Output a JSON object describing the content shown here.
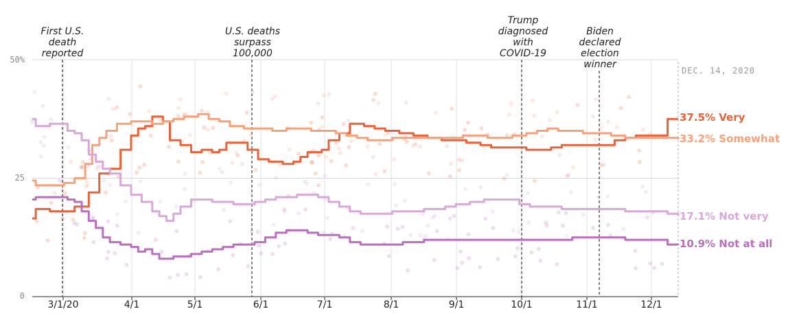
{
  "chart_data": {
    "type": "line",
    "y_ticks": [
      "50%",
      "25",
      "0"
    ],
    "ylim": [
      0,
      50
    ],
    "x_ticks": [
      "3/1/20",
      "4/1",
      "5/1",
      "6/1",
      "7/1",
      "8/1",
      "9/1",
      "10/1",
      "11/1",
      "12/1"
    ],
    "date_label": "DEC. 14, 2020",
    "annotations": [
      {
        "text": "First U.S. death reported",
        "lines": [
          "First U.S.",
          "death",
          "reported"
        ]
      },
      {
        "text": "U.S. deaths surpass 100,000",
        "lines": [
          "U.S. deaths",
          "surpass",
          "100,000"
        ]
      },
      {
        "text": "Trump diagnosed with COVID-19",
        "lines": [
          "Trump",
          "diagnosed",
          "with",
          "COVID-19"
        ]
      },
      {
        "text": "Biden declared election winner",
        "lines": [
          "Biden",
          "declared",
          "election",
          "winner"
        ]
      }
    ],
    "series": [
      {
        "name": "Very",
        "label": "37.5% Very",
        "color": "#e8623a",
        "values": [
          [
            0,
            16.5
          ],
          [
            0.1,
            18.5
          ],
          [
            0.5,
            18
          ],
          [
            0.9,
            18
          ],
          [
            1.2,
            19
          ],
          [
            1.6,
            22
          ],
          [
            1.9,
            26
          ],
          [
            2.2,
            27
          ],
          [
            2.5,
            31
          ],
          [
            2.8,
            34
          ],
          [
            3.0,
            35.5
          ],
          [
            3.2,
            36
          ],
          [
            3.4,
            38
          ],
          [
            3.7,
            37
          ],
          [
            3.9,
            33
          ],
          [
            4.2,
            32
          ],
          [
            4.5,
            30.5
          ],
          [
            4.8,
            31
          ],
          [
            5.1,
            30.5
          ],
          [
            5.3,
            31
          ],
          [
            5.5,
            32.5
          ],
          [
            5.8,
            32.5
          ],
          [
            6.1,
            31
          ],
          [
            6.4,
            29
          ],
          [
            6.7,
            28.5
          ],
          [
            7.1,
            28
          ],
          [
            7.4,
            28.5
          ],
          [
            7.6,
            29.5
          ],
          [
            7.8,
            30.5
          ],
          [
            8.2,
            31
          ],
          [
            8.4,
            33
          ],
          [
            8.7,
            34.5
          ],
          [
            9.0,
            36.5
          ],
          [
            9.4,
            36
          ],
          [
            9.7,
            35.5
          ],
          [
            10.0,
            35
          ],
          [
            10.4,
            34.5
          ],
          [
            10.8,
            34
          ],
          [
            11.2,
            33.5
          ],
          [
            11.6,
            33
          ],
          [
            12.0,
            33
          ],
          [
            12.3,
            32.5
          ],
          [
            12.7,
            32
          ],
          [
            13.0,
            31.5
          ],
          [
            13.4,
            31.5
          ],
          [
            13.7,
            31.5
          ],
          [
            14.0,
            31
          ],
          [
            14.3,
            31
          ],
          [
            14.7,
            31.5
          ],
          [
            15.0,
            32
          ],
          [
            15.3,
            32
          ],
          [
            15.6,
            32
          ],
          [
            15.9,
            32
          ],
          [
            16.2,
            32
          ],
          [
            16.5,
            33
          ],
          [
            16.8,
            33.5
          ],
          [
            17.1,
            34
          ],
          [
            17.4,
            34
          ],
          [
            17.7,
            34
          ],
          [
            18.0,
            37.5
          ],
          [
            18.3,
            37.5
          ]
        ]
      },
      {
        "name": "Somewhat",
        "label": "33.2% Somewhat",
        "color": "#f7a17a",
        "values": [
          [
            0,
            24.5
          ],
          [
            0.1,
            23.5
          ],
          [
            0.5,
            23.5
          ],
          [
            0.9,
            24
          ],
          [
            1.2,
            25
          ],
          [
            1.5,
            28
          ],
          [
            1.7,
            32
          ],
          [
            1.9,
            33.5
          ],
          [
            2.1,
            35
          ],
          [
            2.4,
            36.5
          ],
          [
            2.8,
            37
          ],
          [
            3.1,
            37
          ],
          [
            3.4,
            36.5
          ],
          [
            3.7,
            37
          ],
          [
            4.0,
            37.5
          ],
          [
            4.3,
            38
          ],
          [
            4.7,
            38.5
          ],
          [
            5.0,
            37.5
          ],
          [
            5.3,
            37
          ],
          [
            5.6,
            36
          ],
          [
            6.0,
            35.5
          ],
          [
            6.4,
            35.5
          ],
          [
            6.8,
            35
          ],
          [
            7.2,
            35.5
          ],
          [
            7.6,
            35.5
          ],
          [
            7.9,
            35
          ],
          [
            8.3,
            35
          ],
          [
            8.6,
            34.5
          ],
          [
            8.9,
            34
          ],
          [
            9.2,
            33.5
          ],
          [
            9.5,
            33
          ],
          [
            9.9,
            33
          ],
          [
            10.2,
            33.5
          ],
          [
            10.6,
            33.5
          ],
          [
            11.0,
            33.5
          ],
          [
            11.4,
            33.5
          ],
          [
            11.8,
            33.5
          ],
          [
            12.2,
            34
          ],
          [
            12.6,
            34
          ],
          [
            12.9,
            33.5
          ],
          [
            13.2,
            33.5
          ],
          [
            13.6,
            34
          ],
          [
            14.0,
            34.5
          ],
          [
            14.3,
            35
          ],
          [
            14.6,
            35.5
          ],
          [
            14.9,
            35
          ],
          [
            15.2,
            35
          ],
          [
            15.6,
            34.5
          ],
          [
            16.0,
            34.5
          ],
          [
            16.4,
            34
          ],
          [
            16.8,
            33.5
          ],
          [
            17.2,
            33.5
          ],
          [
            17.6,
            33.5
          ],
          [
            18.0,
            33.5
          ],
          [
            18.3,
            33.2
          ]
        ]
      },
      {
        "name": "Not very",
        "label": "17.1% Not very",
        "color": "#d8a8d8",
        "values": [
          [
            0,
            37.5
          ],
          [
            0.1,
            36
          ],
          [
            0.5,
            36.5
          ],
          [
            0.8,
            36.5
          ],
          [
            1.0,
            35
          ],
          [
            1.2,
            34.5
          ],
          [
            1.4,
            33
          ],
          [
            1.6,
            30
          ],
          [
            1.8,
            28.5
          ],
          [
            2.0,
            27
          ],
          [
            2.2,
            26
          ],
          [
            2.5,
            23.5
          ],
          [
            2.8,
            21.5
          ],
          [
            3.1,
            20
          ],
          [
            3.4,
            18
          ],
          [
            3.6,
            17
          ],
          [
            3.8,
            16
          ],
          [
            4.0,
            17.5
          ],
          [
            4.2,
            19
          ],
          [
            4.5,
            20.5
          ],
          [
            4.8,
            20.5
          ],
          [
            5.1,
            20
          ],
          [
            5.4,
            20
          ],
          [
            5.7,
            19.5
          ],
          [
            6.0,
            19.5
          ],
          [
            6.3,
            20
          ],
          [
            6.6,
            20.5
          ],
          [
            6.9,
            21
          ],
          [
            7.2,
            21
          ],
          [
            7.5,
            21.5
          ],
          [
            7.8,
            21.5
          ],
          [
            8.1,
            21
          ],
          [
            8.4,
            20
          ],
          [
            8.7,
            19
          ],
          [
            9.0,
            18
          ],
          [
            9.3,
            17.5
          ],
          [
            9.6,
            17.5
          ],
          [
            9.9,
            17.5
          ],
          [
            10.2,
            18
          ],
          [
            10.5,
            18
          ],
          [
            10.8,
            18
          ],
          [
            11.1,
            18.5
          ],
          [
            11.4,
            18.5
          ],
          [
            11.7,
            19
          ],
          [
            12.0,
            19.5
          ],
          [
            12.4,
            20
          ],
          [
            12.8,
            20.5
          ],
          [
            13.2,
            20.5
          ],
          [
            13.5,
            20.5
          ],
          [
            13.8,
            19.5
          ],
          [
            14.1,
            19
          ],
          [
            14.4,
            19
          ],
          [
            14.7,
            19
          ],
          [
            15.0,
            18.5
          ],
          [
            15.3,
            18.5
          ],
          [
            15.6,
            18.5
          ],
          [
            15.9,
            18.5
          ],
          [
            16.2,
            18.5
          ],
          [
            16.5,
            18.5
          ],
          [
            16.8,
            18
          ],
          [
            17.1,
            18
          ],
          [
            17.4,
            18
          ],
          [
            17.7,
            18
          ],
          [
            18.0,
            17.5
          ],
          [
            18.3,
            17.1
          ]
        ]
      },
      {
        "name": "Not at all",
        "label": "10.9% Not at all",
        "color": "#b96fbd",
        "values": [
          [
            0,
            20.5
          ],
          [
            0.1,
            21
          ],
          [
            0.5,
            21
          ],
          [
            0.8,
            21
          ],
          [
            1.0,
            20.5
          ],
          [
            1.2,
            20
          ],
          [
            1.4,
            18
          ],
          [
            1.6,
            16
          ],
          [
            1.8,
            14.5
          ],
          [
            2.0,
            12.5
          ],
          [
            2.2,
            11.5
          ],
          [
            2.5,
            11
          ],
          [
            2.8,
            10.5
          ],
          [
            3.0,
            9.5
          ],
          [
            3.2,
            10
          ],
          [
            3.4,
            9
          ],
          [
            3.6,
            8
          ],
          [
            3.8,
            8
          ],
          [
            4.0,
            8.5
          ],
          [
            4.2,
            8.5
          ],
          [
            4.5,
            9
          ],
          [
            4.8,
            9.5
          ],
          [
            5.1,
            10
          ],
          [
            5.4,
            10.5
          ],
          [
            5.7,
            11
          ],
          [
            6.0,
            11
          ],
          [
            6.3,
            11.5
          ],
          [
            6.6,
            12.5
          ],
          [
            6.9,
            13.5
          ],
          [
            7.2,
            14
          ],
          [
            7.5,
            14
          ],
          [
            7.8,
            13.5
          ],
          [
            8.1,
            13
          ],
          [
            8.4,
            13
          ],
          [
            8.7,
            12.5
          ],
          [
            9.0,
            11.5
          ],
          [
            9.3,
            11
          ],
          [
            9.6,
            11
          ],
          [
            9.9,
            11
          ],
          [
            10.2,
            11
          ],
          [
            10.5,
            11.5
          ],
          [
            10.8,
            11.5
          ],
          [
            11.1,
            12
          ],
          [
            11.4,
            12
          ],
          [
            11.7,
            12
          ],
          [
            12.0,
            12
          ],
          [
            12.3,
            12
          ],
          [
            12.6,
            12
          ],
          [
            12.9,
            12
          ],
          [
            13.2,
            12
          ],
          [
            13.5,
            12
          ],
          [
            13.8,
            12
          ],
          [
            14.1,
            12
          ],
          [
            14.4,
            12
          ],
          [
            14.7,
            12
          ],
          [
            15.0,
            12
          ],
          [
            15.3,
            12.5
          ],
          [
            15.6,
            12.5
          ],
          [
            15.9,
            12.5
          ],
          [
            16.2,
            12.5
          ],
          [
            16.5,
            12.5
          ],
          [
            16.8,
            12
          ],
          [
            17.1,
            12
          ],
          [
            17.4,
            12
          ],
          [
            17.7,
            12
          ],
          [
            18.0,
            11
          ],
          [
            18.3,
            10.9
          ]
        ]
      }
    ],
    "grid": true,
    "legend": "right, inline at line ends"
  }
}
